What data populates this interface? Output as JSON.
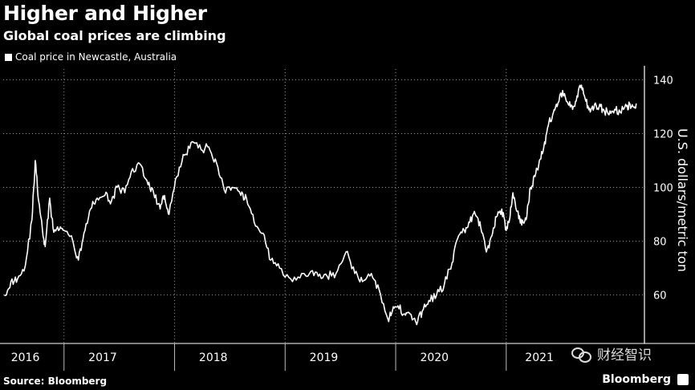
{
  "header": {
    "title": "Higher and Higher",
    "subtitle": "Global coal prices are climbing"
  },
  "legend": {
    "label": "Coal price in Newcastle, Australia"
  },
  "footer": {
    "source": "Source: Bloomberg",
    "brand": "Bloomberg"
  },
  "watermark": {
    "text": "财经智识"
  },
  "colors": {
    "background": "#000000",
    "line": "#ffffff",
    "grid": "#9a9a9a"
  },
  "chart_data": {
    "type": "line",
    "title": "Higher and Higher",
    "subtitle": "Global coal prices are climbing",
    "ylabel": "U.S. dollars/metric ton",
    "xlabel": "",
    "ylim": [
      42,
      144
    ],
    "xlim": [
      2015.95,
      2021.75
    ],
    "yticks": [
      60,
      80,
      100,
      120,
      140
    ],
    "year_labels": [
      "2016",
      "2017",
      "2018",
      "2019",
      "2020",
      "2021"
    ],
    "year_label_positions": [
      2016.15,
      2016.85,
      2017.85,
      2018.85,
      2019.85,
      2020.8
    ],
    "year_boundaries": [
      2016.5,
      2017.5,
      2018.5,
      2019.5,
      2020.5
    ],
    "grid": true,
    "legend_position": "top-left",
    "series": [
      {
        "name": "Coal price in Newcastle, Australia",
        "x": [
          2015.96,
          2016.02,
          2016.08,
          2016.15,
          2016.21,
          2016.24,
          2016.27,
          2016.31,
          2016.33,
          2016.37,
          2016.4,
          2016.45,
          2016.5,
          2016.58,
          2016.63,
          2016.68,
          2016.74,
          2016.8,
          2016.87,
          2016.93,
          2016.98,
          2017.05,
          2017.12,
          2017.2,
          2017.26,
          2017.31,
          2017.37,
          2017.41,
          2017.45,
          2017.52,
          2017.59,
          2017.66,
          2017.74,
          2017.81,
          2017.88,
          2017.95,
          2018.02,
          2018.1,
          2018.15,
          2018.22,
          2018.3,
          2018.37,
          2018.45,
          2018.55,
          2018.65,
          2018.72,
          2018.8,
          2018.88,
          2018.96,
          2019.05,
          2019.13,
          2019.2,
          2019.28,
          2019.35,
          2019.43,
          2019.47,
          2019.52,
          2019.58,
          2019.63,
          2019.69,
          2019.74,
          2019.8,
          2019.87,
          2019.94,
          2020.01,
          2020.06,
          2020.12,
          2020.17,
          2020.22,
          2020.27,
          2020.32,
          2020.37,
          2020.41,
          2020.46,
          2020.5,
          2020.53,
          2020.56,
          2020.6,
          2020.64,
          2020.68,
          2020.72,
          2020.76,
          2020.8,
          2020.84,
          2020.88,
          2020.92,
          2020.96,
          2021.01,
          2021.06,
          2021.1,
          2021.14,
          2021.18,
          2021.22,
          2021.26,
          2021.3,
          2021.34,
          2021.38,
          2021.43,
          2021.48,
          2021.53,
          2021.59,
          2021.62,
          2021.65,
          2021.68
        ],
        "values": [
          60,
          65,
          66,
          71,
          88,
          110,
          95,
          82,
          78,
          96,
          85,
          84,
          84,
          80,
          73,
          83,
          92,
          96,
          97,
          95,
          100,
          98,
          107,
          108,
          101,
          98,
          92,
          97,
          90,
          104,
          112,
          117,
          114,
          115,
          109,
          99,
          100,
          97,
          96,
          87,
          83,
          73,
          70,
          66,
          68,
          68,
          67,
          67,
          68,
          76,
          68,
          65,
          68,
          62,
          51,
          54,
          56,
          53,
          53,
          49,
          54,
          58,
          60,
          64,
          72,
          81,
          84,
          87,
          90,
          85,
          76,
          82,
          89,
          92,
          84,
          88,
          98,
          91,
          86,
          88,
          100,
          104,
          110,
          115,
          123,
          127,
          130,
          136,
          131,
          129,
          134,
          138,
          132,
          128,
          131,
          130,
          129,
          127,
          129,
          128,
          130,
          131,
          130,
          131
        ]
      }
    ]
  }
}
